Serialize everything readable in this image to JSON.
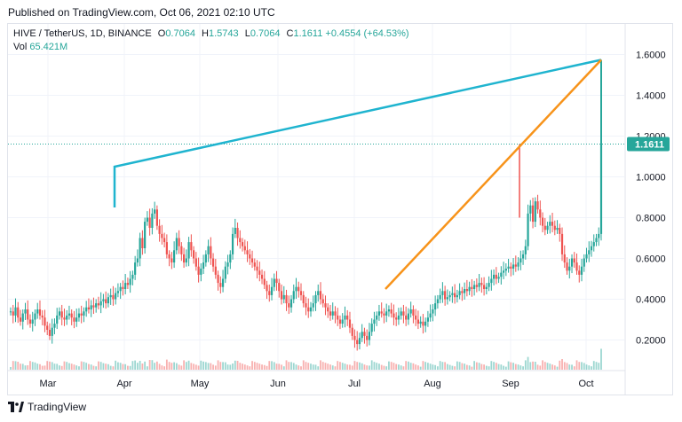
{
  "header": {
    "published": "Published on TradingView.com, Oct 06, 2021 02:10 UTC"
  },
  "legend": {
    "symbol": "HIVE / TetherUS, 1D, BINANCE",
    "o_label": "O",
    "o_value": "0.7064",
    "h_label": "H",
    "h_value": "1.5743",
    "l_label": "L",
    "l_value": "0.7064",
    "c_label": "C",
    "c_value": "1.1611",
    "change": "+0.4554 (+64.53%)",
    "vol_label": "Vol",
    "vol_value": "65.421M"
  },
  "footer": {
    "brand": "TradingView"
  },
  "colors": {
    "up": "#26a69a",
    "down": "#ef5350",
    "trend_cyan": "#1fb4cf",
    "trend_orange": "#f7931a",
    "last_price_bg": "#26a69a"
  },
  "chart_data": {
    "type": "candlestick",
    "x_ticks": [
      "Mar",
      "Apr",
      "May",
      "Jun",
      "Jul",
      "Aug",
      "Sep",
      "Oct"
    ],
    "y_ticks": [
      "0.2000",
      "0.4000",
      "0.6000",
      "0.8000",
      "1.0000",
      "1.2000",
      "1.4000",
      "1.6000"
    ],
    "y_range": [
      0.05,
      1.75
    ],
    "last_price": "1.1611",
    "closes": [
      0.34,
      0.32,
      0.36,
      0.31,
      0.29,
      0.33,
      0.35,
      0.3,
      0.28,
      0.3,
      0.33,
      0.35,
      0.32,
      0.31,
      0.27,
      0.25,
      0.22,
      0.26,
      0.28,
      0.32,
      0.34,
      0.31,
      0.3,
      0.32,
      0.33,
      0.31,
      0.29,
      0.31,
      0.33,
      0.32,
      0.34,
      0.36,
      0.35,
      0.37,
      0.36,
      0.38,
      0.37,
      0.39,
      0.4,
      0.38,
      0.41,
      0.42,
      0.4,
      0.43,
      0.44,
      0.46,
      0.45,
      0.48,
      0.47,
      0.5,
      0.52,
      0.58,
      0.6,
      0.7,
      0.65,
      0.78,
      0.8,
      0.75,
      0.82,
      0.84,
      0.76,
      0.72,
      0.7,
      0.68,
      0.62,
      0.6,
      0.58,
      0.64,
      0.7,
      0.66,
      0.62,
      0.58,
      0.6,
      0.68,
      0.64,
      0.6,
      0.56,
      0.52,
      0.55,
      0.58,
      0.62,
      0.66,
      0.6,
      0.56,
      0.52,
      0.48,
      0.46,
      0.5,
      0.56,
      0.58,
      0.62,
      0.72,
      0.75,
      0.7,
      0.68,
      0.66,
      0.64,
      0.62,
      0.6,
      0.58,
      0.56,
      0.54,
      0.52,
      0.5,
      0.47,
      0.44,
      0.42,
      0.46,
      0.5,
      0.48,
      0.44,
      0.4,
      0.42,
      0.38,
      0.36,
      0.4,
      0.44,
      0.46,
      0.44,
      0.42,
      0.38,
      0.36,
      0.34,
      0.36,
      0.38,
      0.42,
      0.44,
      0.4,
      0.38,
      0.36,
      0.34,
      0.32,
      0.34,
      0.32,
      0.3,
      0.28,
      0.3,
      0.32,
      0.3,
      0.26,
      0.22,
      0.2,
      0.18,
      0.21,
      0.24,
      0.22,
      0.2,
      0.24,
      0.28,
      0.3,
      0.32,
      0.34,
      0.33,
      0.32,
      0.34,
      0.35,
      0.33,
      0.31,
      0.3,
      0.32,
      0.34,
      0.32,
      0.3,
      0.33,
      0.35,
      0.32,
      0.3,
      0.28,
      0.29,
      0.27,
      0.29,
      0.31,
      0.33,
      0.35,
      0.38,
      0.4,
      0.42,
      0.44,
      0.4,
      0.41,
      0.42,
      0.43,
      0.41,
      0.42,
      0.44,
      0.43,
      0.45,
      0.44,
      0.46,
      0.45,
      0.47,
      0.46,
      0.48,
      0.47,
      0.45,
      0.46,
      0.48,
      0.5,
      0.52,
      0.5,
      0.51,
      0.53,
      0.54,
      0.55,
      0.56,
      0.55,
      0.57,
      0.56,
      0.58,
      0.6,
      0.62,
      0.66,
      0.82,
      0.86,
      0.78,
      0.88,
      0.84,
      0.8,
      0.76,
      0.74,
      0.76,
      0.78,
      0.76,
      0.74,
      0.75,
      0.72,
      0.62,
      0.58,
      0.54,
      0.56,
      0.6,
      0.58,
      0.54,
      0.52,
      0.56,
      0.6,
      0.62,
      0.64,
      0.66,
      0.68,
      0.7,
      0.72,
      1.16
    ]
  }
}
